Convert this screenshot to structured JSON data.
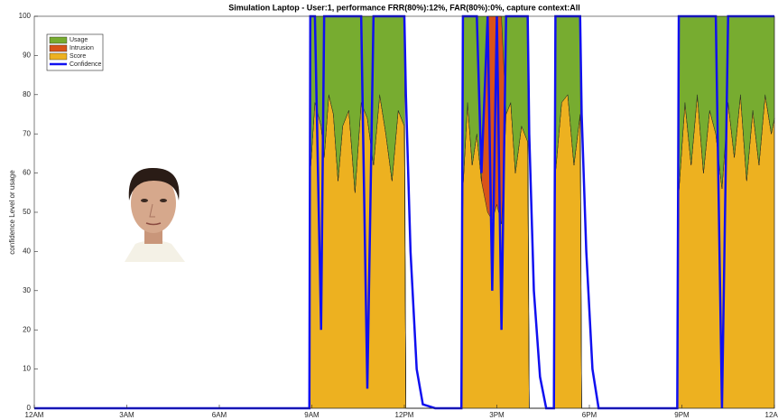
{
  "chart_data": {
    "type": "stacked-area-line",
    "title": "Simulation Laptop - User:1, performance FRR(80%):12%, FAR(80%):0%, capture context:All",
    "y_label": "confidence Level or usage",
    "x": [
      0,
      8.92,
      8.95,
      9.1,
      9.3,
      9.4,
      9.55,
      9.7,
      9.85,
      10.0,
      10.2,
      10.4,
      10.6,
      10.8,
      11.0,
      11.2,
      11.4,
      11.6,
      11.8,
      12.0,
      12.05,
      12.2,
      12.4,
      12.6,
      13.0,
      13.85,
      13.9,
      14.05,
      14.2,
      14.35,
      14.5,
      14.7,
      14.85,
      15.0,
      15.15,
      15.3,
      15.45,
      15.6,
      15.8,
      16.0,
      16.05,
      16.2,
      16.4,
      16.6,
      16.85,
      16.9,
      17.1,
      17.3,
      17.5,
      17.7,
      17.75,
      17.9,
      18.1,
      18.3,
      20.85,
      20.9,
      21.1,
      21.3,
      21.5,
      21.7,
      21.9,
      22.1,
      22.3,
      22.5,
      22.7,
      22.9,
      23.1,
      23.3,
      23.5,
      23.7,
      23.9,
      24
    ],
    "series": [
      {
        "name": "Usage",
        "color": "#77ac30",
        "kind": "area",
        "values": [
          0,
          0,
          40,
          22,
          28,
          36,
          20,
          25,
          42,
          28,
          24,
          45,
          22,
          26,
          38,
          20,
          30,
          42,
          24,
          28,
          0,
          0,
          0,
          0,
          0,
          0,
          44,
          22,
          38,
          30,
          42,
          0,
          0,
          0,
          0,
          25,
          22,
          40,
          28,
          32,
          0,
          0,
          0,
          0,
          0,
          40,
          22,
          20,
          38,
          25,
          0,
          0,
          0,
          0,
          0,
          45,
          22,
          38,
          20,
          40,
          24,
          30,
          44,
          22,
          36,
          20,
          42,
          24,
          38,
          20,
          30,
          26
        ]
      },
      {
        "name": "Intrusion",
        "color": "#d95319",
        "kind": "area",
        "values": [
          0,
          0,
          0,
          0,
          0,
          0,
          0,
          0,
          0,
          0,
          0,
          0,
          0,
          0,
          0,
          0,
          0,
          0,
          0,
          0,
          0,
          0,
          0,
          0,
          0,
          0,
          0,
          0,
          0,
          0,
          0,
          50,
          52,
          48,
          53,
          0,
          0,
          0,
          0,
          0,
          0,
          0,
          0,
          0,
          0,
          0,
          0,
          0,
          0,
          0,
          0,
          0,
          0,
          0,
          0,
          0,
          0,
          0,
          0,
          0,
          0,
          0,
          0,
          0,
          0,
          0,
          0,
          0,
          0,
          0,
          0,
          0
        ]
      },
      {
        "name": "Score",
        "color": "#edb120",
        "kind": "area",
        "values": [
          0,
          0,
          60,
          78,
          72,
          64,
          80,
          75,
          58,
          72,
          76,
          55,
          78,
          74,
          62,
          80,
          70,
          58,
          76,
          72,
          0,
          0,
          0,
          0,
          0,
          0,
          56,
          78,
          62,
          70,
          58,
          50,
          48,
          52,
          47,
          75,
          78,
          60,
          72,
          68,
          0,
          0,
          0,
          0,
          0,
          60,
          78,
          80,
          62,
          75,
          0,
          0,
          0,
          0,
          0,
          55,
          78,
          62,
          80,
          60,
          76,
          70,
          56,
          78,
          64,
          80,
          58,
          76,
          62,
          80,
          70,
          74
        ]
      },
      {
        "name": "Confidence",
        "color": "#1010f0",
        "kind": "line",
        "values": [
          0,
          0,
          100,
          100,
          20,
          100,
          100,
          100,
          100,
          100,
          100,
          100,
          100,
          5,
          100,
          100,
          100,
          100,
          100,
          100,
          80,
          40,
          10,
          1,
          0,
          0,
          100,
          100,
          100,
          100,
          60,
          100,
          30,
          100,
          20,
          100,
          100,
          100,
          100,
          100,
          70,
          30,
          8,
          0,
          0,
          100,
          100,
          100,
          100,
          100,
          75,
          40,
          10,
          0,
          0,
          100,
          100,
          100,
          100,
          100,
          100,
          100,
          0,
          100,
          100,
          100,
          100,
          100,
          100,
          100,
          100,
          100
        ]
      }
    ],
    "xlim": [
      0,
      24
    ],
    "xticks": [
      {
        "value": 0,
        "label": "12AM"
      },
      {
        "value": 3,
        "label": "3AM"
      },
      {
        "value": 6,
        "label": "6AM"
      },
      {
        "value": 9,
        "label": "9AM"
      },
      {
        "value": 12,
        "label": "12PM"
      },
      {
        "value": 15,
        "label": "3PM"
      },
      {
        "value": 18,
        "label": "6PM"
      },
      {
        "value": 21,
        "label": "9PM"
      },
      {
        "value": 24,
        "label": "12AM"
      }
    ],
    "ylim": [
      0,
      100
    ],
    "yticks": [
      0,
      10,
      20,
      30,
      40,
      50,
      60,
      70,
      80,
      90,
      100
    ],
    "legend": "top-left"
  }
}
